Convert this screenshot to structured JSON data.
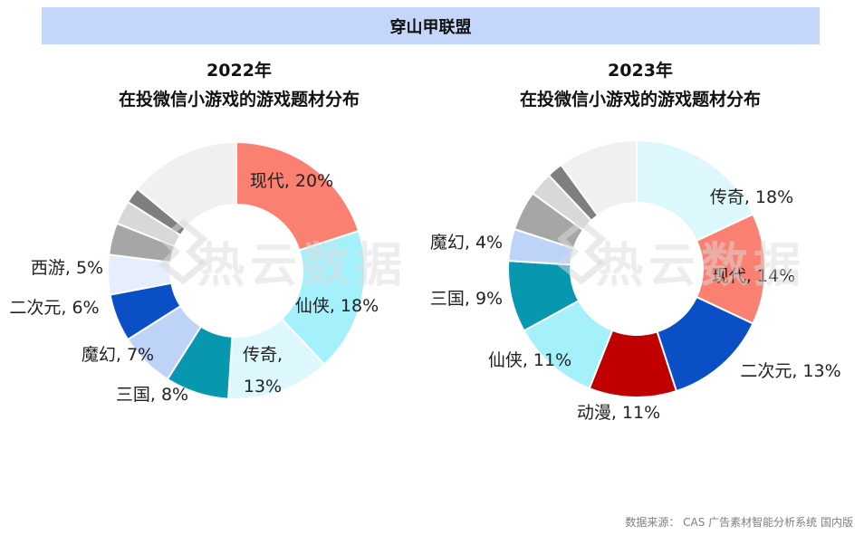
{
  "header": {
    "title": "穿山甲联盟"
  },
  "watermark": "热云数据",
  "source": "数据来源： CAS 广告素材智能分析系统 国内版",
  "chart_data": [
    {
      "type": "pie",
      "title_line1": "2022年",
      "title_line2": "在投微信小游戏的游戏题材分布",
      "slices": [
        {
          "label": "现代",
          "value": 20,
          "text": "现代, 20%",
          "color": "#fa8072"
        },
        {
          "label": "仙侠",
          "value": 18,
          "text": "仙侠, 18%",
          "color": "#a4f0fb"
        },
        {
          "label": "传奇",
          "value": 13,
          "text_lines": [
            "传奇,",
            "13%"
          ],
          "color": "#ddf8fd"
        },
        {
          "label": "三国",
          "value": 8,
          "text": "三国, 8%",
          "color": "#0798b0"
        },
        {
          "label": "魔幻",
          "value": 7,
          "text": "魔幻, 7%",
          "color": "#bed3f8"
        },
        {
          "label": "二次元",
          "value": 6,
          "text": "二次元, 6%",
          "color": "#0a4fc6"
        },
        {
          "label": "西游",
          "value": 5,
          "text": "西游, 5%",
          "color": "#e6eefc"
        },
        {
          "label": "",
          "value": 4,
          "color": "#a6a6a6"
        },
        {
          "label": "",
          "value": 3,
          "color": "#d8d8d8"
        },
        {
          "label": "",
          "value": 2,
          "color": "#7f7f7f"
        },
        {
          "label": "",
          "value": 14,
          "color": "#f0f0f0"
        }
      ]
    },
    {
      "type": "pie",
      "title_line1": "2023年",
      "title_line2": "在投微信小游戏的游戏题材分布",
      "slices": [
        {
          "label": "传奇",
          "value": 18,
          "text": "传奇, 18%",
          "color": "#ddf8fd"
        },
        {
          "label": "现代",
          "value": 14,
          "text": "现代, 14%",
          "color": "#fa8072"
        },
        {
          "label": "二次元",
          "value": 13,
          "text": "二次元, 13%",
          "color": "#0a4fc6"
        },
        {
          "label": "动漫",
          "value": 11,
          "text": "动漫, 11%",
          "color": "#c00000"
        },
        {
          "label": "仙侠",
          "value": 11,
          "text": "仙侠, 11%",
          "color": "#a4f0fb"
        },
        {
          "label": "三国",
          "value": 9,
          "text": "三国, 9%",
          "color": "#0798b0"
        },
        {
          "label": "魔幻",
          "value": 4,
          "text": "魔幻, 4%",
          "color": "#bed3f8"
        },
        {
          "label": "",
          "value": 5,
          "color": "#a6a6a6"
        },
        {
          "label": "",
          "value": 3,
          "color": "#d8d8d8"
        },
        {
          "label": "",
          "value": 2,
          "color": "#7f7f7f"
        },
        {
          "label": "",
          "value": 10,
          "color": "#f0f0f0"
        }
      ]
    }
  ]
}
